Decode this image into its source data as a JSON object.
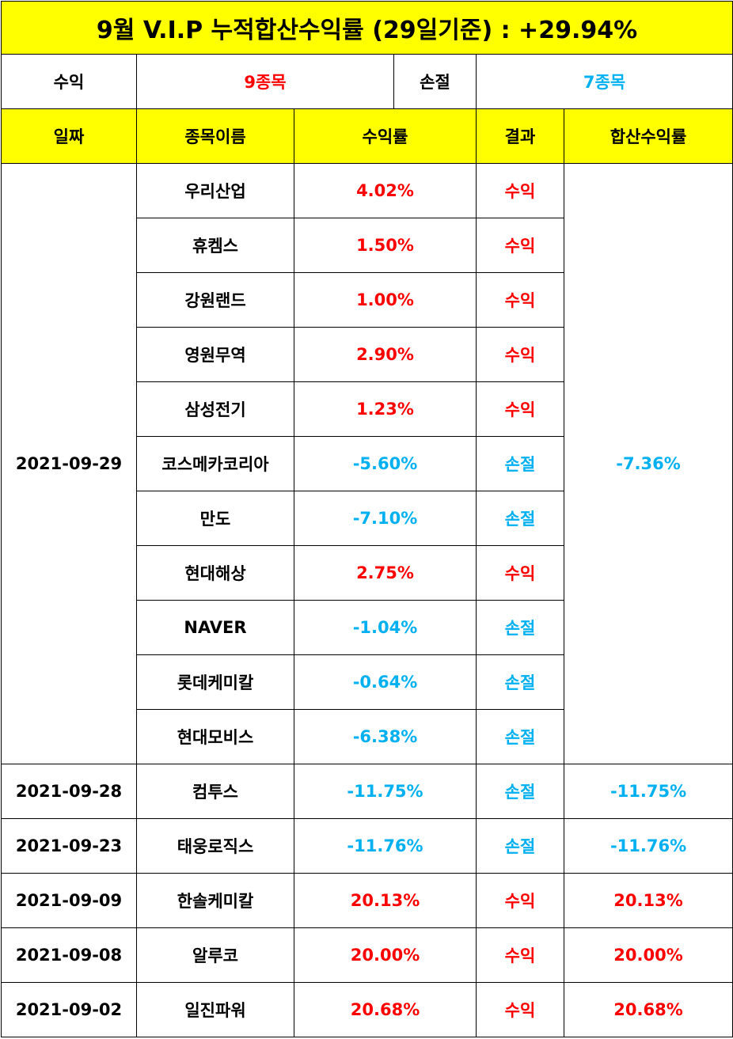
{
  "title": "9월 V.I.P 누적합산수익률 (29일기준) : +29.94%",
  "summary": {
    "profit_label": "수익",
    "profit_value": "9종목",
    "loss_label": "손절",
    "loss_value": "7종목"
  },
  "headers": {
    "date": "일짜",
    "stock_name": "종목이름",
    "return_rate": "수익률",
    "result": "결과",
    "combined_return": "합산수익률"
  },
  "colors": {
    "header_bg": "#ffff00",
    "profit": "#ff0000",
    "loss": "#00b0f0"
  },
  "groups": [
    {
      "date": "2021-09-29",
      "combined": "-7.36%",
      "rows": [
        {
          "name": "우리산업",
          "rate": "4.02%",
          "result": "수익"
        },
        {
          "name": "휴켐스",
          "rate": "1.50%",
          "result": "수익"
        },
        {
          "name": "강원랜드",
          "rate": "1.00%",
          "result": "수익"
        },
        {
          "name": "영원무역",
          "rate": "2.90%",
          "result": "수익"
        },
        {
          "name": "삼성전기",
          "rate": "1.23%",
          "result": "수익"
        },
        {
          "name": "코스메카코리아",
          "rate": "-5.60%",
          "result": "손절"
        },
        {
          "name": "만도",
          "rate": "-7.10%",
          "result": "손절"
        },
        {
          "name": "현대해상",
          "rate": "2.75%",
          "result": "수익"
        },
        {
          "name": "NAVER",
          "rate": "-1.04%",
          "result": "손절"
        },
        {
          "name": "롯데케미칼",
          "rate": "-0.64%",
          "result": "손절"
        },
        {
          "name": "현대모비스",
          "rate": "-6.38%",
          "result": "손절"
        }
      ]
    },
    {
      "date": "2021-09-28",
      "combined": "-11.75%",
      "rows": [
        {
          "name": "컴투스",
          "rate": "-11.75%",
          "result": "손절"
        }
      ]
    },
    {
      "date": "2021-09-23",
      "combined": "-11.76%",
      "rows": [
        {
          "name": "태웅로직스",
          "rate": "-11.76%",
          "result": "손절"
        }
      ]
    },
    {
      "date": "2021-09-09",
      "combined": "20.13%",
      "rows": [
        {
          "name": "한솔케미칼",
          "rate": "20.13%",
          "result": "수익"
        }
      ]
    },
    {
      "date": "2021-09-08",
      "combined": "20.00%",
      "rows": [
        {
          "name": "알루코",
          "rate": "20.00%",
          "result": "수익"
        }
      ]
    },
    {
      "date": "2021-09-02",
      "combined": "20.68%",
      "rows": [
        {
          "name": "일진파워",
          "rate": "20.68%",
          "result": "수익"
        }
      ]
    }
  ]
}
